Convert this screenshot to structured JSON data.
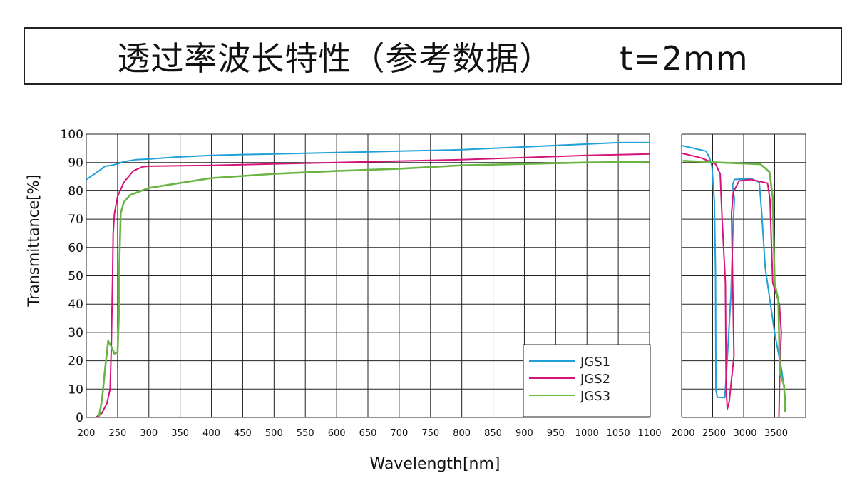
{
  "chart_data": {
    "type": "line",
    "title": "透过率波长特性（参考数据）      t=2mm",
    "xlabel": "Wavelength[nm]",
    "ylabel": "Transmittance[%]",
    "grid": true,
    "legend_position": "bottom-right of left panel",
    "panels": [
      {
        "xlim": [
          200,
          1100
        ],
        "xticks": [
          200,
          250,
          300,
          350,
          400,
          450,
          500,
          550,
          600,
          650,
          700,
          750,
          800,
          850,
          900,
          950,
          1000,
          1050,
          1100
        ],
        "ylim": [
          0,
          100
        ],
        "yticks": [
          0,
          10,
          20,
          30,
          40,
          50,
          60,
          70,
          80,
          90,
          100
        ]
      },
      {
        "xlim": [
          2000,
          4000
        ],
        "xticks": [
          2000,
          2500,
          3000,
          3500
        ],
        "ylim": [
          0,
          100
        ]
      }
    ],
    "series": [
      {
        "name": "JGS1",
        "color": "#1ea0d8",
        "panel1": [
          [
            200,
            84
          ],
          [
            210,
            85.5
          ],
          [
            220,
            87
          ],
          [
            230,
            88.7
          ],
          [
            240,
            89
          ],
          [
            250,
            89.5
          ],
          [
            260,
            90.3
          ],
          [
            280,
            91
          ],
          [
            300,
            91.2
          ],
          [
            350,
            92
          ],
          [
            400,
            92.5
          ],
          [
            450,
            92.8
          ],
          [
            500,
            93
          ],
          [
            600,
            93.5
          ],
          [
            700,
            94
          ],
          [
            800,
            94.5
          ],
          [
            900,
            95.5
          ],
          [
            1000,
            96.5
          ],
          [
            1050,
            97
          ],
          [
            1100,
            97
          ]
        ],
        "panel2": [
          [
            2000,
            96
          ],
          [
            2393,
            94
          ],
          [
            2450,
            91.7
          ],
          [
            2489,
            88.7
          ],
          [
            2527,
            76.9
          ],
          [
            2546,
            52
          ],
          [
            2553,
            9.7
          ],
          [
            2576,
            7.1
          ],
          [
            2698,
            7
          ],
          [
            2729,
            18
          ],
          [
            2794,
            43
          ],
          [
            2832,
            68.5
          ],
          [
            2851,
            77
          ],
          [
            2821,
            82
          ],
          [
            2851,
            84
          ],
          [
            3118,
            84.3
          ],
          [
            3252,
            83
          ],
          [
            3290,
            72.7
          ],
          [
            3347,
            53
          ],
          [
            3500,
            29.8
          ],
          [
            3615,
            16.4
          ],
          [
            3679,
            5.5
          ]
        ]
      },
      {
        "name": "JGS2",
        "color": "#d6137a",
        "panel1": [
          [
            215,
            0
          ],
          [
            225,
            1.5
          ],
          [
            233,
            5
          ],
          [
            238,
            10
          ],
          [
            240,
            25
          ],
          [
            242,
            50
          ],
          [
            243,
            65
          ],
          [
            245,
            72
          ],
          [
            250,
            78
          ],
          [
            260,
            83
          ],
          [
            275,
            87
          ],
          [
            290,
            88.5
          ],
          [
            300,
            88.7
          ],
          [
            400,
            89
          ],
          [
            600,
            90
          ],
          [
            800,
            91
          ],
          [
            1000,
            92.5
          ],
          [
            1100,
            93
          ]
        ],
        "panel2": [
          [
            2000,
            93.3
          ],
          [
            2317,
            91.6
          ],
          [
            2546,
            89.5
          ],
          [
            2622,
            86
          ],
          [
            2653,
            70
          ],
          [
            2706,
            47.5
          ],
          [
            2718,
            9.7
          ],
          [
            2737,
            3
          ],
          [
            2767,
            5.5
          ],
          [
            2844,
            21.6
          ],
          [
            2805,
            72
          ],
          [
            2832,
            79.5
          ],
          [
            2927,
            83.5
          ],
          [
            3118,
            84
          ],
          [
            3385,
            82.7
          ],
          [
            3424,
            77
          ],
          [
            3469,
            47.5
          ],
          [
            3576,
            40
          ],
          [
            3607,
            30
          ],
          [
            3584,
            18.5
          ],
          [
            3569,
            0
          ]
        ]
      },
      {
        "name": "JGS3",
        "color": "#6ab543",
        "panel1": [
          [
            220,
            0
          ],
          [
            225,
            6
          ],
          [
            230,
            17
          ],
          [
            235,
            27
          ],
          [
            240,
            25
          ],
          [
            245,
            22.5
          ],
          [
            250,
            23
          ],
          [
            252,
            35
          ],
          [
            253,
            55
          ],
          [
            255,
            72
          ],
          [
            260,
            76
          ],
          [
            270,
            78.5
          ],
          [
            300,
            81
          ],
          [
            400,
            84.5
          ],
          [
            500,
            86
          ],
          [
            600,
            87
          ],
          [
            700,
            87.8
          ],
          [
            800,
            89
          ],
          [
            900,
            89.5
          ],
          [
            1000,
            90
          ],
          [
            1100,
            90.3
          ]
        ],
        "panel2": [
          [
            2019,
            90.6
          ],
          [
            2584,
            90
          ],
          [
            3271,
            89.4
          ],
          [
            3347,
            88
          ],
          [
            3416,
            86.6
          ],
          [
            3469,
            77.7
          ],
          [
            3500,
            47.5
          ],
          [
            3557,
            41.6
          ],
          [
            3584,
            15.6
          ],
          [
            3652,
            11.3
          ],
          [
            3668,
            2
          ]
        ]
      }
    ]
  }
}
